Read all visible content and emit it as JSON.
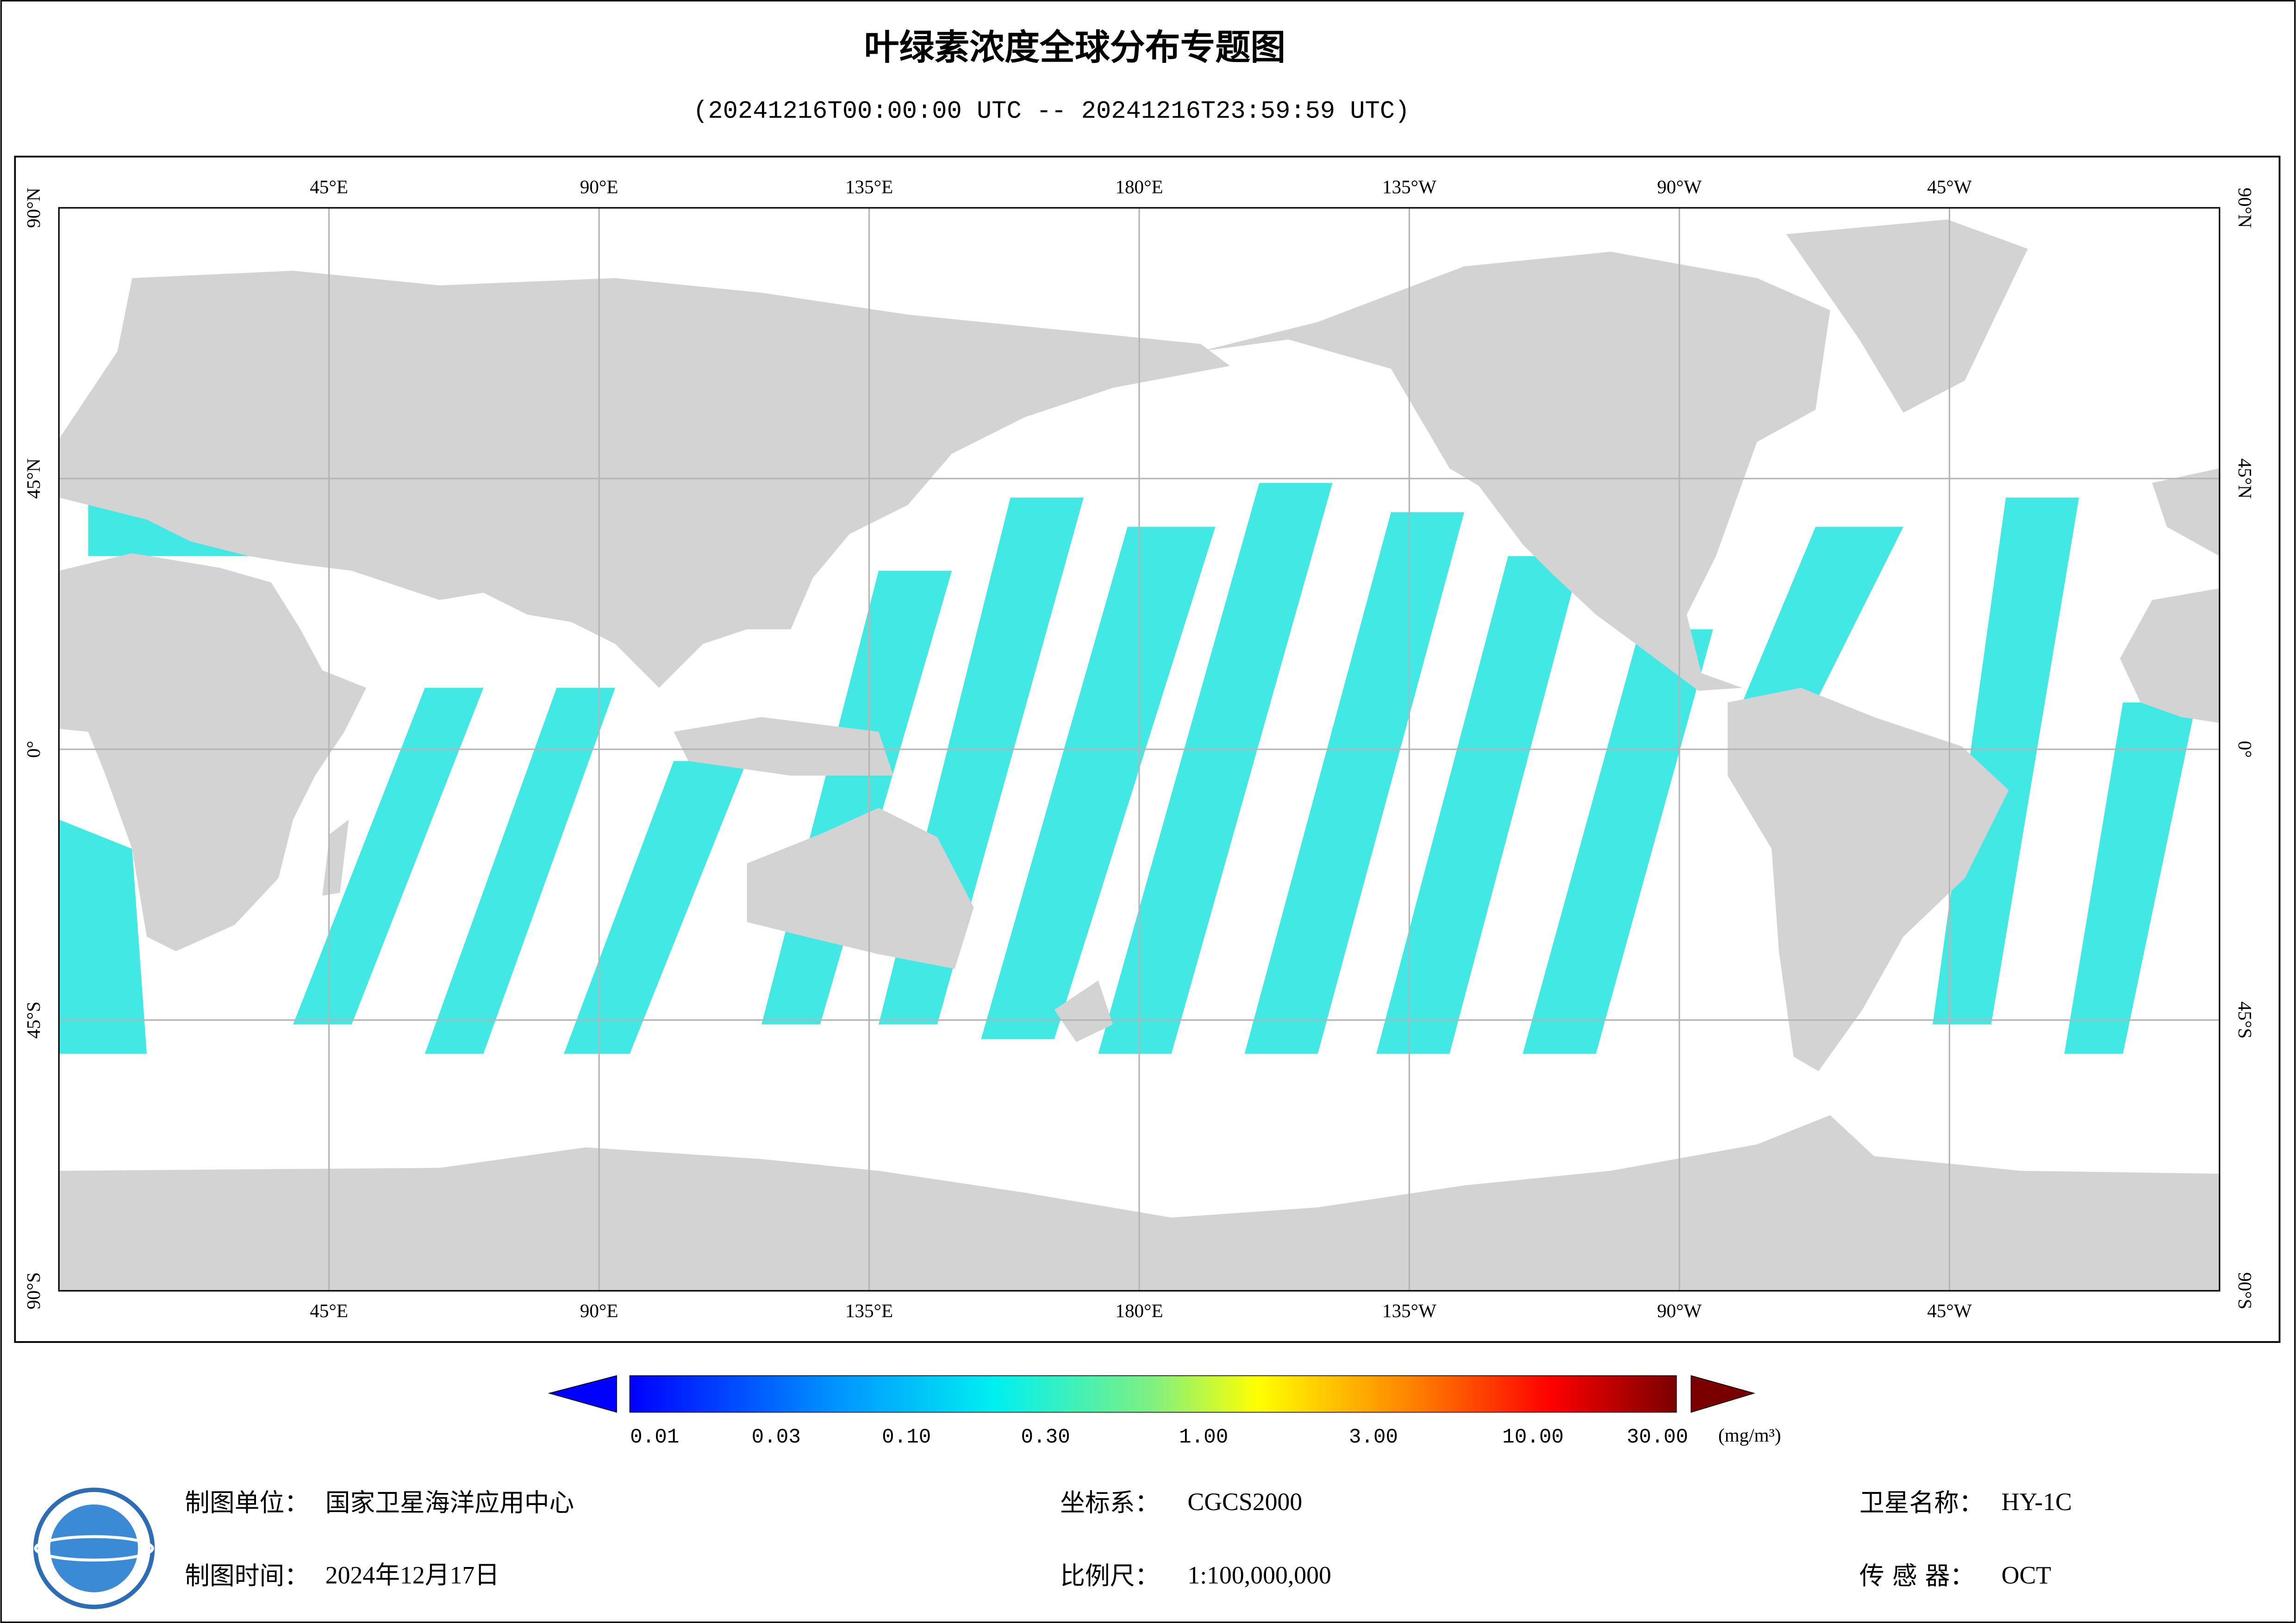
{
  "map": {
    "title": "叶绿素浓度全球分布专题图",
    "subtitle": "(20241216T00:00:00 UTC -- 20241216T23:59:59 UTC)",
    "lon_labels": [
      "45°E",
      "90°E",
      "135°E",
      "180°E",
      "135°W",
      "90°W",
      "45°W"
    ],
    "lat_labels": [
      "90°N",
      "45°N",
      "0°",
      "45°S",
      "90°S"
    ],
    "colorbar": {
      "ticks": [
        "0.01",
        "0.03",
        "0.10",
        "0.30",
        "1.00",
        "3.00",
        "10.00",
        "30.00"
      ],
      "unit": "(mg/m³)"
    },
    "footer": {
      "unit_label": "制图单位：",
      "unit_value": "国家卫星海洋应用中心",
      "date_label": "制图时间：",
      "date_value": "2024年12月17日",
      "crs_label": "坐标系：",
      "crs_value": "CGCS2000",
      "scale_label": "比例尺：",
      "scale_value": "1:100,000,000",
      "satellite_label": "卫星名称：",
      "satellite_value": "HY-1C",
      "sensor_label": "传 感 器：",
      "sensor_value": "OCT"
    }
  }
}
